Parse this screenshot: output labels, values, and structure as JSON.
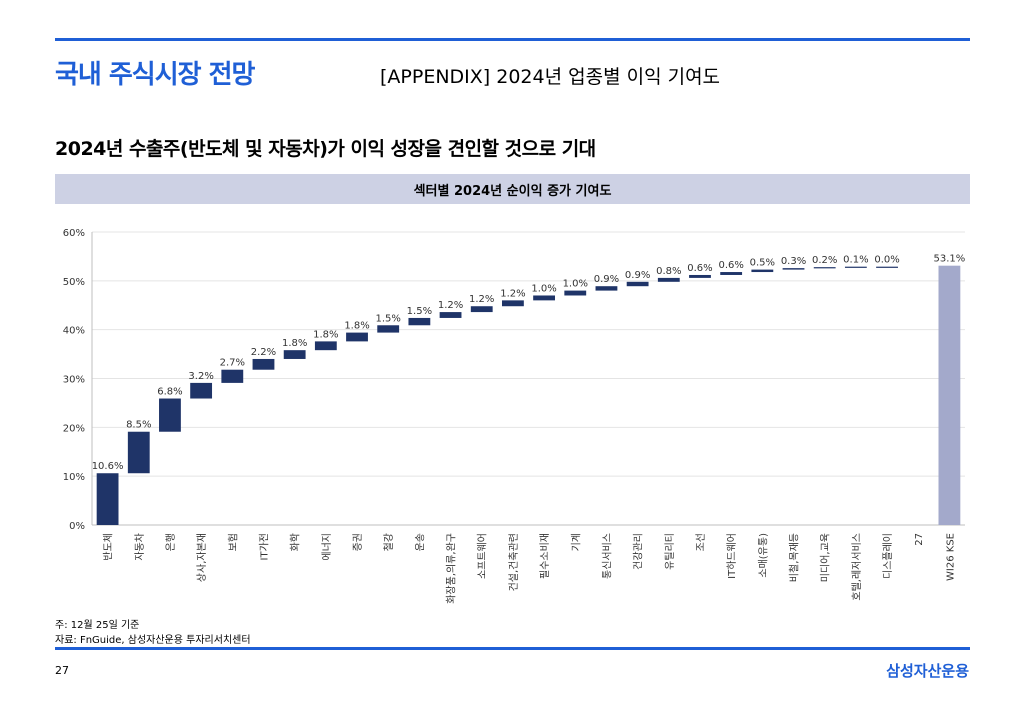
{
  "header": {
    "section_title": "국내 주식시장 전망",
    "appendix_title": "[APPENDIX] 2024년 업종별 이익 기여도"
  },
  "headline": "2024년 수출주(반도체 및 자동차)가 이익 성장을 견인할 것으로 기대",
  "chart_banner": "섹터별 2024년 순이익 증가 기여도",
  "footer": {
    "note": "주: 12월 25일 기준",
    "source": "자료: FnGuide, 삼성자산운용 투자리서치센터",
    "page_number": "27",
    "brand": "삼성자산운용"
  },
  "colors": {
    "accent": "#1f5fd6",
    "bar": "#1f3468",
    "total_bar": "#a3a9cb",
    "banner": "#cdd1e4"
  },
  "chart_data": {
    "type": "bar",
    "subtype": "waterfall",
    "ylim": [
      0,
      60
    ],
    "yticks": [
      "0%",
      "10%",
      "20%",
      "30%",
      "40%",
      "50%",
      "60%"
    ],
    "grid": true,
    "categories": [
      "반도체",
      "자동차",
      "은행",
      "상사,자본재",
      "보험",
      "IT가전",
      "화학",
      "에너지",
      "증권",
      "철강",
      "운송",
      "화장품,의류,완구",
      "소프트웨어",
      "건설,건축관련",
      "필수소비재",
      "기계",
      "통신서비스",
      "건강관리",
      "유틸리티",
      "조선",
      "IT하드웨어",
      "소매(유통)",
      "비철,목재등",
      "미디어,교육",
      "호텔,레저서비스",
      "디스플레이",
      "27",
      "WI26 KSE"
    ],
    "values": [
      10.6,
      8.5,
      6.8,
      3.2,
      2.7,
      2.2,
      1.8,
      1.8,
      1.8,
      1.5,
      1.5,
      1.2,
      1.2,
      1.2,
      1.0,
      1.0,
      0.9,
      0.9,
      0.8,
      0.6,
      0.6,
      0.5,
      0.3,
      0.2,
      0.1,
      0.0,
      null,
      53.1
    ],
    "labels": [
      "10.6%",
      "8.5%",
      "6.8%",
      "3.2%",
      "2.7%",
      "2.2%",
      "1.8%",
      "1.8%",
      "1.8%",
      "1.5%",
      "1.5%",
      "1.2%",
      "1.2%",
      "1.2%",
      "1.0%",
      "1.0%",
      "0.9%",
      "0.9%",
      "0.8%",
      "0.6%",
      "0.6%",
      "0.5%",
      "0.3%",
      "0.2%",
      "0.1%",
      "0.0%",
      "",
      "53.1%"
    ],
    "total_index": 27
  }
}
